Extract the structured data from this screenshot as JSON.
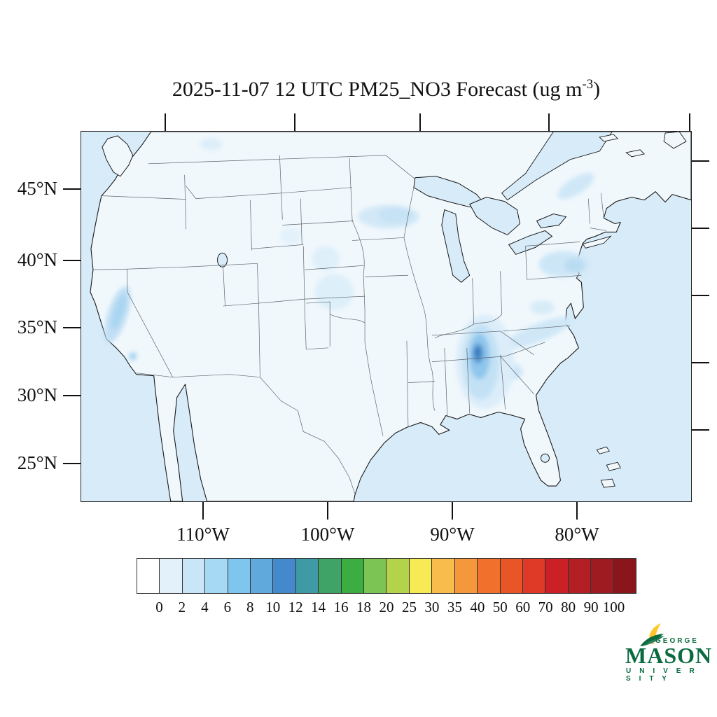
{
  "title": {
    "prefix": "2025-11-07 12 UTC PM25_NO3 Forecast (ug m",
    "superscript": "-3",
    "suffix": ")"
  },
  "axes": {
    "lat_labels": [
      "45°N",
      "40°N",
      "35°N",
      "30°N",
      "25°N"
    ],
    "lon_labels": [
      "110°W",
      "100°W",
      "90°W",
      "80°W"
    ]
  },
  "colorbar": {
    "tick_labels": [
      "0",
      "2",
      "4",
      "6",
      "8",
      "10",
      "12",
      "14",
      "16",
      "18",
      "20",
      "25",
      "30",
      "35",
      "40",
      "50",
      "60",
      "70",
      "80",
      "90",
      "100"
    ],
    "cell_colors": [
      "#ffffff",
      "#e2f1fa",
      "#c9e6f8",
      "#a6daf4",
      "#7ec6ee",
      "#60a9dd",
      "#4389cb",
      "#3e9aa4",
      "#3fa368",
      "#3cae41",
      "#7cc453",
      "#b3d44a",
      "#f7ea55",
      "#f7bc4b",
      "#f5983b",
      "#f1712c",
      "#e85527",
      "#de3a27",
      "#cb2026",
      "#b21f24",
      "#9e1b21",
      "#8a161b"
    ]
  },
  "logo": {
    "top": "GEORGE",
    "middle": "MASON",
    "bottom": "U N I V E R S I T Y",
    "green": "#0b6b3f",
    "gold": "#ffc72c"
  },
  "map_colors": {
    "ocean": "#d7ebf8",
    "land": "#f1f8fc",
    "coast": "#1a1a1a",
    "state_border": "#5b6770"
  },
  "chart_data": {
    "type": "heatmap",
    "title": "2025-11-07 12 UTC PM25_NO3 Forecast (ug m-3)",
    "variable": "PM25_NO3",
    "forecast_time": "2025-11-07 12 UTC",
    "units": "ug m-3",
    "region": "Contiguous United States (Lambert-style CONUS domain)",
    "colorbar_levels": [
      0,
      2,
      4,
      6,
      8,
      10,
      12,
      14,
      16,
      18,
      20,
      25,
      30,
      35,
      40,
      50,
      60,
      70,
      80,
      90,
      100
    ],
    "lat_ticks": [
      "45°N",
      "40°N",
      "35°N",
      "30°N",
      "25°N"
    ],
    "lon_ticks": [
      "110°W",
      "100°W",
      "90°W",
      "80°W"
    ],
    "background_value_approx": 0,
    "hotspots": [
      {
        "region": "northern Alabama / southern Tennessee",
        "peak_value_approx": 10
      },
      {
        "region": "plume streak into western Carolinas / northern Georgia",
        "peak_value_approx": 2
      },
      {
        "region": "California Central Valley",
        "peak_value_approx": 3
      },
      {
        "region": "southern Minnesota / western Wisconsin",
        "peak_value_approx": 2
      },
      {
        "region": "eastern Pennsylvania / New Jersey / NYC area",
        "peak_value_approx": 2
      },
      {
        "region": "upstate New York / Vermont",
        "peak_value_approx": 2
      },
      {
        "region": "scattered central Great Plains (Kansas / Nebraska)",
        "peak_value_approx": 1
      }
    ]
  }
}
